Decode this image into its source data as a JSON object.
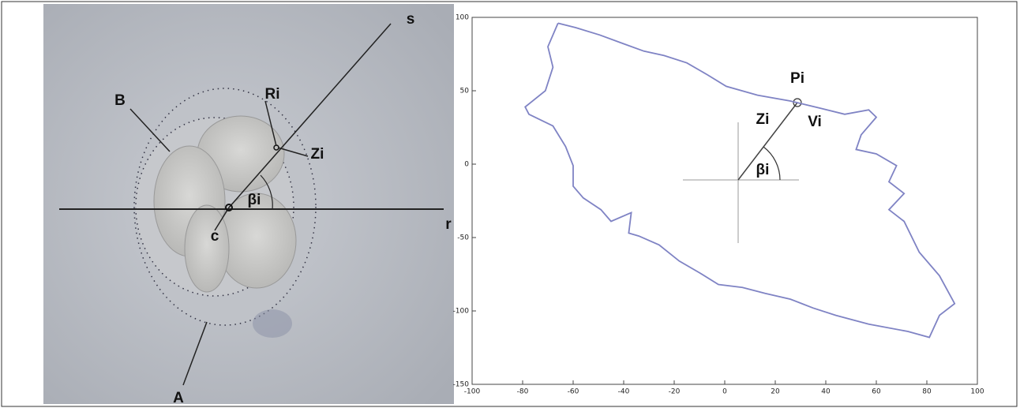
{
  "photo_labels": [
    "s",
    "Ri",
    "B",
    "Zi",
    "βi",
    "c",
    "r",
    "A"
  ],
  "chart_data": {
    "type": "line",
    "annotations": [
      "Pi",
      "Zi",
      "Vi",
      "βi"
    ],
    "color": "#7f83c4",
    "xlim": [
      -100,
      100
    ],
    "ylim": [
      -150,
      100
    ],
    "xticks": [
      -100,
      -80,
      -60,
      -40,
      -20,
      0,
      20,
      40,
      60,
      80,
      100
    ],
    "yticks": [
      -150,
      -100,
      -50,
      0,
      50,
      100
    ],
    "x": [
      -66,
      -59,
      -49.5,
      -40,
      -32,
      -24,
      -15,
      -7,
      0.6,
      13,
      26,
      38,
      47.5,
      57,
      60,
      54,
      52,
      60,
      68,
      65,
      71,
      65,
      71,
      77,
      85,
      91,
      85,
      81,
      72.5,
      57,
      44,
      35,
      26,
      16,
      7,
      -2.5,
      -10,
      -18,
      -26,
      -34,
      -38,
      -37,
      -45,
      -49,
      -56,
      -60,
      -60,
      -63,
      -68,
      -77.5,
      -79,
      -71,
      -68,
      -70,
      -66
    ],
    "values": [
      96,
      93,
      88,
      82,
      77,
      74,
      69,
      61,
      53,
      47,
      43,
      38,
      34,
      37,
      32,
      20,
      10,
      7,
      -1,
      -12,
      -20,
      -31,
      -39,
      -60,
      -76,
      -95,
      -103,
      -118,
      -114,
      -109,
      -103,
      -98,
      -92,
      -88,
      -84,
      -82,
      -74,
      -66,
      -55,
      -49,
      -47,
      -33,
      -39,
      -31,
      -23,
      -15,
      -1,
      12,
      26,
      34,
      39,
      50,
      66,
      80,
      96
    ]
  }
}
